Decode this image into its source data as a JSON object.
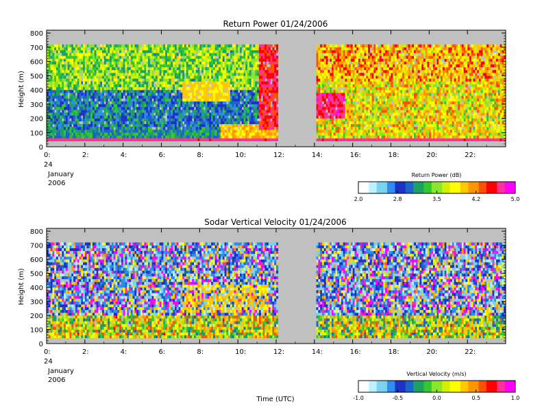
{
  "chart_data": [
    {
      "type": "heatmap",
      "title": "Return Power 01/24/2006",
      "ylabel": "Height (m)",
      "ylim": [
        0,
        820
      ],
      "yticks": [
        0,
        100,
        200,
        300,
        400,
        500,
        600,
        700,
        800
      ],
      "xlim": [
        0,
        24
      ],
      "xticks": [
        0,
        2,
        4,
        6,
        8,
        10,
        12,
        14,
        16,
        18,
        20,
        22
      ],
      "xtick_labels": [
        "0:",
        "2:",
        "4:",
        "6:",
        "8:",
        "10:",
        "12:",
        "14:",
        "16:",
        "18:",
        "20:",
        "22:"
      ],
      "date_label": [
        "24",
        "January",
        "2006"
      ],
      "data_gap_hours": [
        12,
        14
      ],
      "height_range_m": [
        40,
        720
      ],
      "colorbar": {
        "label": "Return Power (dB)",
        "range": [
          2.0,
          5.0
        ],
        "ticks": [
          "2.0",
          "2.8",
          "3.5",
          "4.2",
          "5.0"
        ]
      },
      "background_color": "#c0c0c0",
      "grid": false
    },
    {
      "type": "heatmap",
      "title": "Sodar Vertical Velocity 01/24/2006",
      "ylabel": "Height (m)",
      "xlabel": "Time (UTC)",
      "ylim": [
        0,
        820
      ],
      "yticks": [
        0,
        100,
        200,
        300,
        400,
        500,
        600,
        700,
        800
      ],
      "xlim": [
        0,
        24
      ],
      "xticks": [
        0,
        2,
        4,
        6,
        8,
        10,
        12,
        14,
        16,
        18,
        20,
        22
      ],
      "xtick_labels": [
        "0:",
        "2:",
        "4:",
        "6:",
        "8:",
        "10:",
        "12:",
        "14:",
        "16:",
        "18:",
        "20:",
        "22:"
      ],
      "date_label": [
        "24",
        "January",
        "2006"
      ],
      "data_gap_hours": [
        12,
        14
      ],
      "height_range_m": [
        40,
        720
      ],
      "colorbar": {
        "label": "Vertical Velocity (m/s)",
        "range": [
          -1.0,
          1.0
        ],
        "ticks": [
          "-1.0",
          "-0.5",
          "0.0",
          "0.5",
          "1.0"
        ]
      },
      "background_color": "#c0c0c0",
      "grid": false
    }
  ],
  "colormap": [
    "#ffffff",
    "#bdf0fa",
    "#7ad2f0",
    "#2f8cf0",
    "#1e32c8",
    "#1e64c8",
    "#1ea064",
    "#32c832",
    "#8ce628",
    "#d2f000",
    "#ffff00",
    "#ffc800",
    "#ff9600",
    "#ff5000",
    "#ff0000",
    "#ff3296",
    "#ff00ff"
  ]
}
